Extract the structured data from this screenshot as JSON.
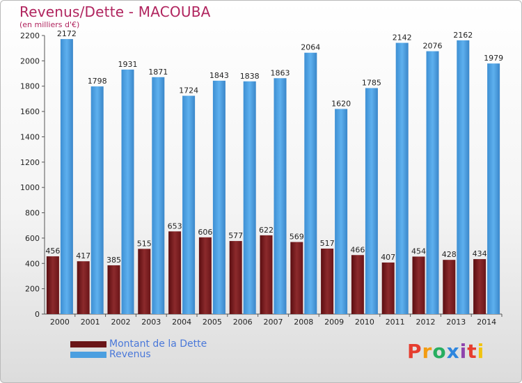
{
  "title": "Revenus/Dette - MACOUBA",
  "subtitle": "(en milliers d'€)",
  "logo_text": "Proxiti",
  "logo_colors": [
    "#e63d2f",
    "#f39c12",
    "#27ae60",
    "#2e86de",
    "#8e44ad",
    "#e63d2f",
    "#f1c40f"
  ],
  "colors": {
    "dette": "#7b1c1f",
    "dette_light": "#8c2a2c",
    "revenus": "#4b9fe0",
    "revenus_light": "#5eb0ee",
    "title": "#b0245e",
    "legend_text": "#4a78d9"
  },
  "chart_data": {
    "type": "bar",
    "categories": [
      "2000",
      "2001",
      "2002",
      "2003",
      "2004",
      "2005",
      "2006",
      "2007",
      "2008",
      "2009",
      "2010",
      "2011",
      "2012",
      "2013",
      "2014"
    ],
    "series": [
      {
        "name": "Montant de la Dette",
        "values": [
          456,
          417,
          385,
          515,
          653,
          606,
          577,
          622,
          569,
          517,
          466,
          407,
          454,
          428,
          434
        ]
      },
      {
        "name": "Revenus",
        "values": [
          2172,
          1798,
          1931,
          1871,
          1724,
          1843,
          1838,
          1863,
          2064,
          1620,
          1785,
          2142,
          2076,
          2162,
          1979
        ]
      }
    ],
    "title": "Revenus/Dette - MACOUBA",
    "ylabel": "(en milliers d'€)",
    "ylim": [
      0,
      2200
    ],
    "yticks": [
      0,
      200,
      400,
      600,
      800,
      1000,
      1200,
      1400,
      1600,
      1800,
      2000,
      2200
    ],
    "grid": false,
    "legend_position": "bottom-left"
  }
}
